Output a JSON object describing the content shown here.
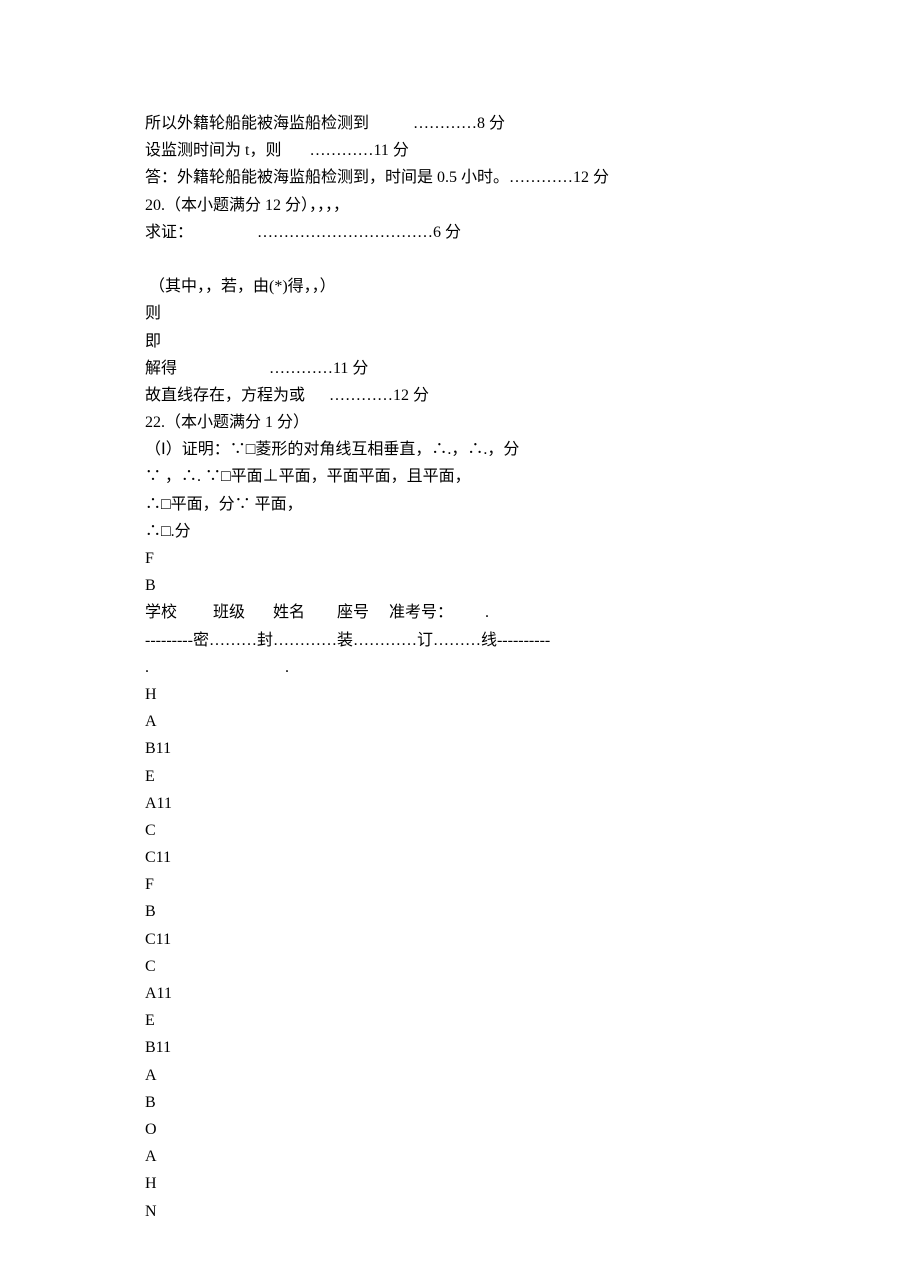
{
  "lines": [
    "所以外籍轮船能被海监船检测到           …………8 分",
    "设监测时间为 t，则       …………11 分",
    "答：外籍轮船能被海监船检测到，时间是 0.5 小时。…………12 分",
    "20.（本小题满分 12 分），，，，",
    "求证：                ……………………………6 分",
    "",
    " （其中，，若，由(*)得，，）",
    "则",
    "即",
    "解得                       …………11 分",
    "故直线存在，方程为或      …………12 分",
    "22.（本小题满分 1 分）",
    "（Ⅰ）证明：∵□菱形的对角线互相垂直，∴.，∴.，分",
    "∵ ，∴. ∵□平面⊥平面，平面平面，且平面，",
    "∴□平面，分∵ 平面，",
    "∴□.分",
    "F",
    "B",
    "学校         班级       姓名        座号     准考号：        .",
    "---------密………封…………装…………订………线----------",
    ".                                  .",
    "H",
    "A",
    "B11",
    "E",
    "A11",
    "C",
    "C11",
    "F",
    "B",
    "C11",
    "C",
    "A11",
    "E",
    "B11",
    "A",
    "B",
    "O",
    "A",
    "H",
    "N"
  ]
}
